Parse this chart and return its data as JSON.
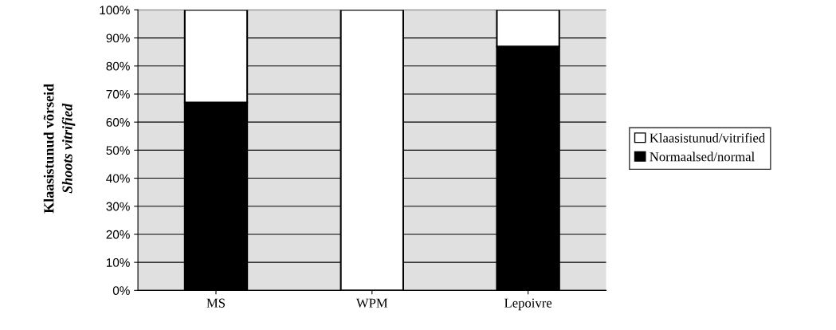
{
  "chart_data": {
    "type": "bar",
    "stacked": true,
    "ylabel": "Klaasistunud võrseid\nShoots vitrified",
    "categories": [
      "MS",
      "WPM",
      "Lepoivre"
    ],
    "series": [
      {
        "name": "Normaalsed/normal",
        "color": "#000000",
        "values": [
          67,
          0,
          87
        ]
      },
      {
        "name": "Klaasistunud/vitrified",
        "color": "#ffffff",
        "values": [
          33,
          100,
          13
        ]
      }
    ],
    "ylim": [
      0,
      100
    ],
    "yticks": [
      {
        "value": 0,
        "label": "0%"
      },
      {
        "value": 10,
        "label": "10%"
      },
      {
        "value": 20,
        "label": "20%"
      },
      {
        "value": 30,
        "label": "30%"
      },
      {
        "value": 40,
        "label": "40%"
      },
      {
        "value": 50,
        "label": "50%"
      },
      {
        "value": 60,
        "label": "60%"
      },
      {
        "value": 70,
        "label": "70%"
      },
      {
        "value": 80,
        "label": "80%"
      },
      {
        "value": 90,
        "label": "90%"
      },
      {
        "value": 100,
        "label": "100%"
      }
    ],
    "grid": "y",
    "legend": "right"
  }
}
